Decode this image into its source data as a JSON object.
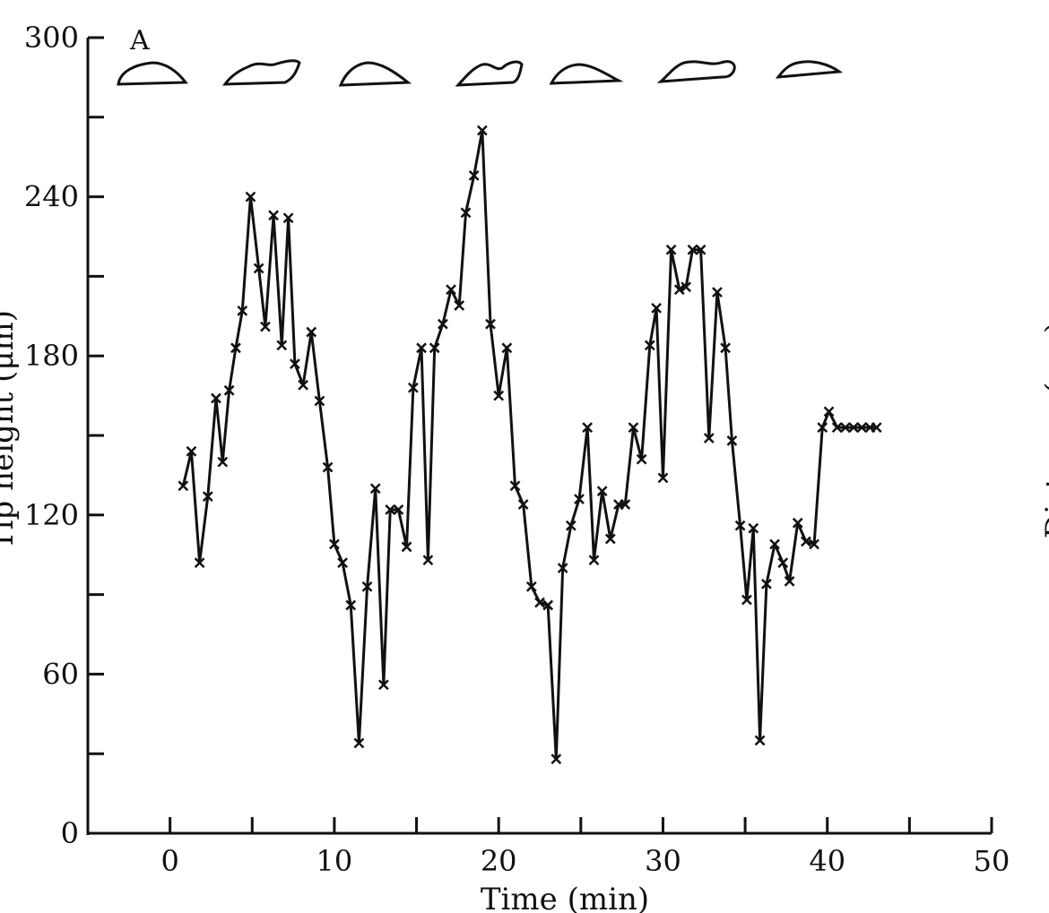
{
  "chart_data": {
    "type": "line",
    "panel_label": "A",
    "xlabel": "Time (min)",
    "ylabel": "Tip height (μm)",
    "right_ylabel": "Distance (μm)",
    "xlim": [
      -5,
      50
    ],
    "ylim": [
      0,
      300
    ],
    "x_ticks": [
      0,
      10,
      20,
      30,
      40,
      50
    ],
    "y_ticks": [
      0,
      60,
      120,
      180,
      240,
      300
    ],
    "x_tick_labels": [
      "0",
      "10",
      "20",
      "30",
      "40",
      "50"
    ],
    "y_tick_labels": [
      "0",
      "60",
      "120",
      "180",
      "240",
      "300"
    ],
    "grid": false,
    "marker": "x",
    "series": [
      {
        "x": [
          0.8,
          1.3,
          1.8,
          2.3,
          2.8,
          3.2,
          3.6,
          4.0,
          4.4,
          4.9,
          5.4,
          5.8,
          6.3,
          6.8,
          7.2,
          7.6,
          8.1,
          8.6,
          9.1,
          9.6,
          10.0,
          10.5,
          11.0,
          11.5,
          12.0,
          12.5,
          13.0,
          13.4,
          13.9,
          14.4,
          14.8,
          15.3,
          15.7,
          16.1,
          16.6,
          17.1,
          17.6,
          18.0,
          18.5,
          19.0,
          19.5,
          20.0,
          20.5,
          21.0,
          21.5,
          22.0,
          22.5,
          23.0,
          23.5,
          23.9,
          24.4,
          24.9,
          25.4,
          25.8,
          26.3,
          26.8,
          27.3,
          27.7,
          28.2,
          28.7,
          29.2,
          29.6,
          30.0,
          30.5,
          31.0,
          31.4,
          31.8,
          32.3,
          32.8,
          33.3,
          33.8,
          34.2,
          34.7,
          35.1,
          35.5,
          35.9,
          36.3,
          36.8,
          37.3,
          37.7,
          38.2,
          38.7,
          39.2,
          39.7,
          40.1,
          40.6,
          41.1,
          41.6,
          42.1,
          42.6,
          43.0
        ],
        "y": [
          131,
          144,
          102,
          127,
          164,
          140,
          167,
          183,
          197,
          240,
          213,
          191,
          233,
          184,
          232,
          177,
          169,
          189,
          163,
          138,
          109,
          102,
          86,
          34,
          93,
          130,
          56,
          122,
          122,
          108,
          168,
          183,
          103,
          183,
          192,
          205,
          199,
          234,
          248,
          265,
          192,
          165,
          183,
          131,
          124,
          93,
          87,
          86,
          28,
          100,
          116,
          126,
          153,
          103,
          129,
          111,
          124,
          124,
          153,
          141,
          184,
          198,
          134,
          220,
          205,
          206,
          220,
          220,
          149,
          204,
          183,
          148,
          116,
          88,
          115,
          35,
          94,
          109,
          102,
          95,
          117,
          110,
          109,
          153,
          159,
          153,
          153,
          153,
          153,
          153,
          153
        ]
      }
    ]
  }
}
